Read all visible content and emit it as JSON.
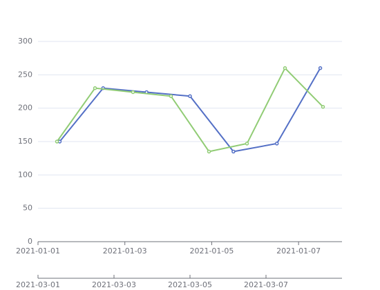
{
  "chart_data": {
    "type": "line",
    "xlim": [
      "2021-01-01",
      "2021-01-08"
    ],
    "xticks": [
      "2021-01-01",
      "2021-01-03",
      "2021-01-05",
      "2021-01-07"
    ],
    "x2lim": [
      "2021-03-01",
      "2021-03-09"
    ],
    "x2ticks": [
      "2021-03-01",
      "2021-03-03",
      "2021-03-05",
      "2021-03-07"
    ],
    "ylim": [
      0,
      300
    ],
    "yticks": [
      0,
      50,
      100,
      150,
      200,
      250,
      300
    ],
    "grid": true,
    "series": [
      {
        "color": "#5470c6",
        "axis": "x",
        "x": [
          "2021-01-01T12:00",
          "2021-01-02T12:00",
          "2021-01-03T12:00",
          "2021-01-04T12:00",
          "2021-01-05T12:00",
          "2021-01-06T12:00",
          "2021-01-07T12:00"
        ],
        "values": [
          150,
          230,
          224,
          218,
          135,
          147,
          260
        ]
      },
      {
        "color": "#91cc75",
        "axis": "x2",
        "x": [
          "2021-03-01T12:00",
          "2021-03-02T12:00",
          "2021-03-03T12:00",
          "2021-03-04T12:00",
          "2021-03-05T12:00",
          "2021-03-06T12:00",
          "2021-03-07T12:00",
          "2021-03-08T12:00"
        ],
        "values": [
          150,
          230,
          224,
          218,
          135,
          147,
          260,
          202
        ]
      }
    ]
  }
}
